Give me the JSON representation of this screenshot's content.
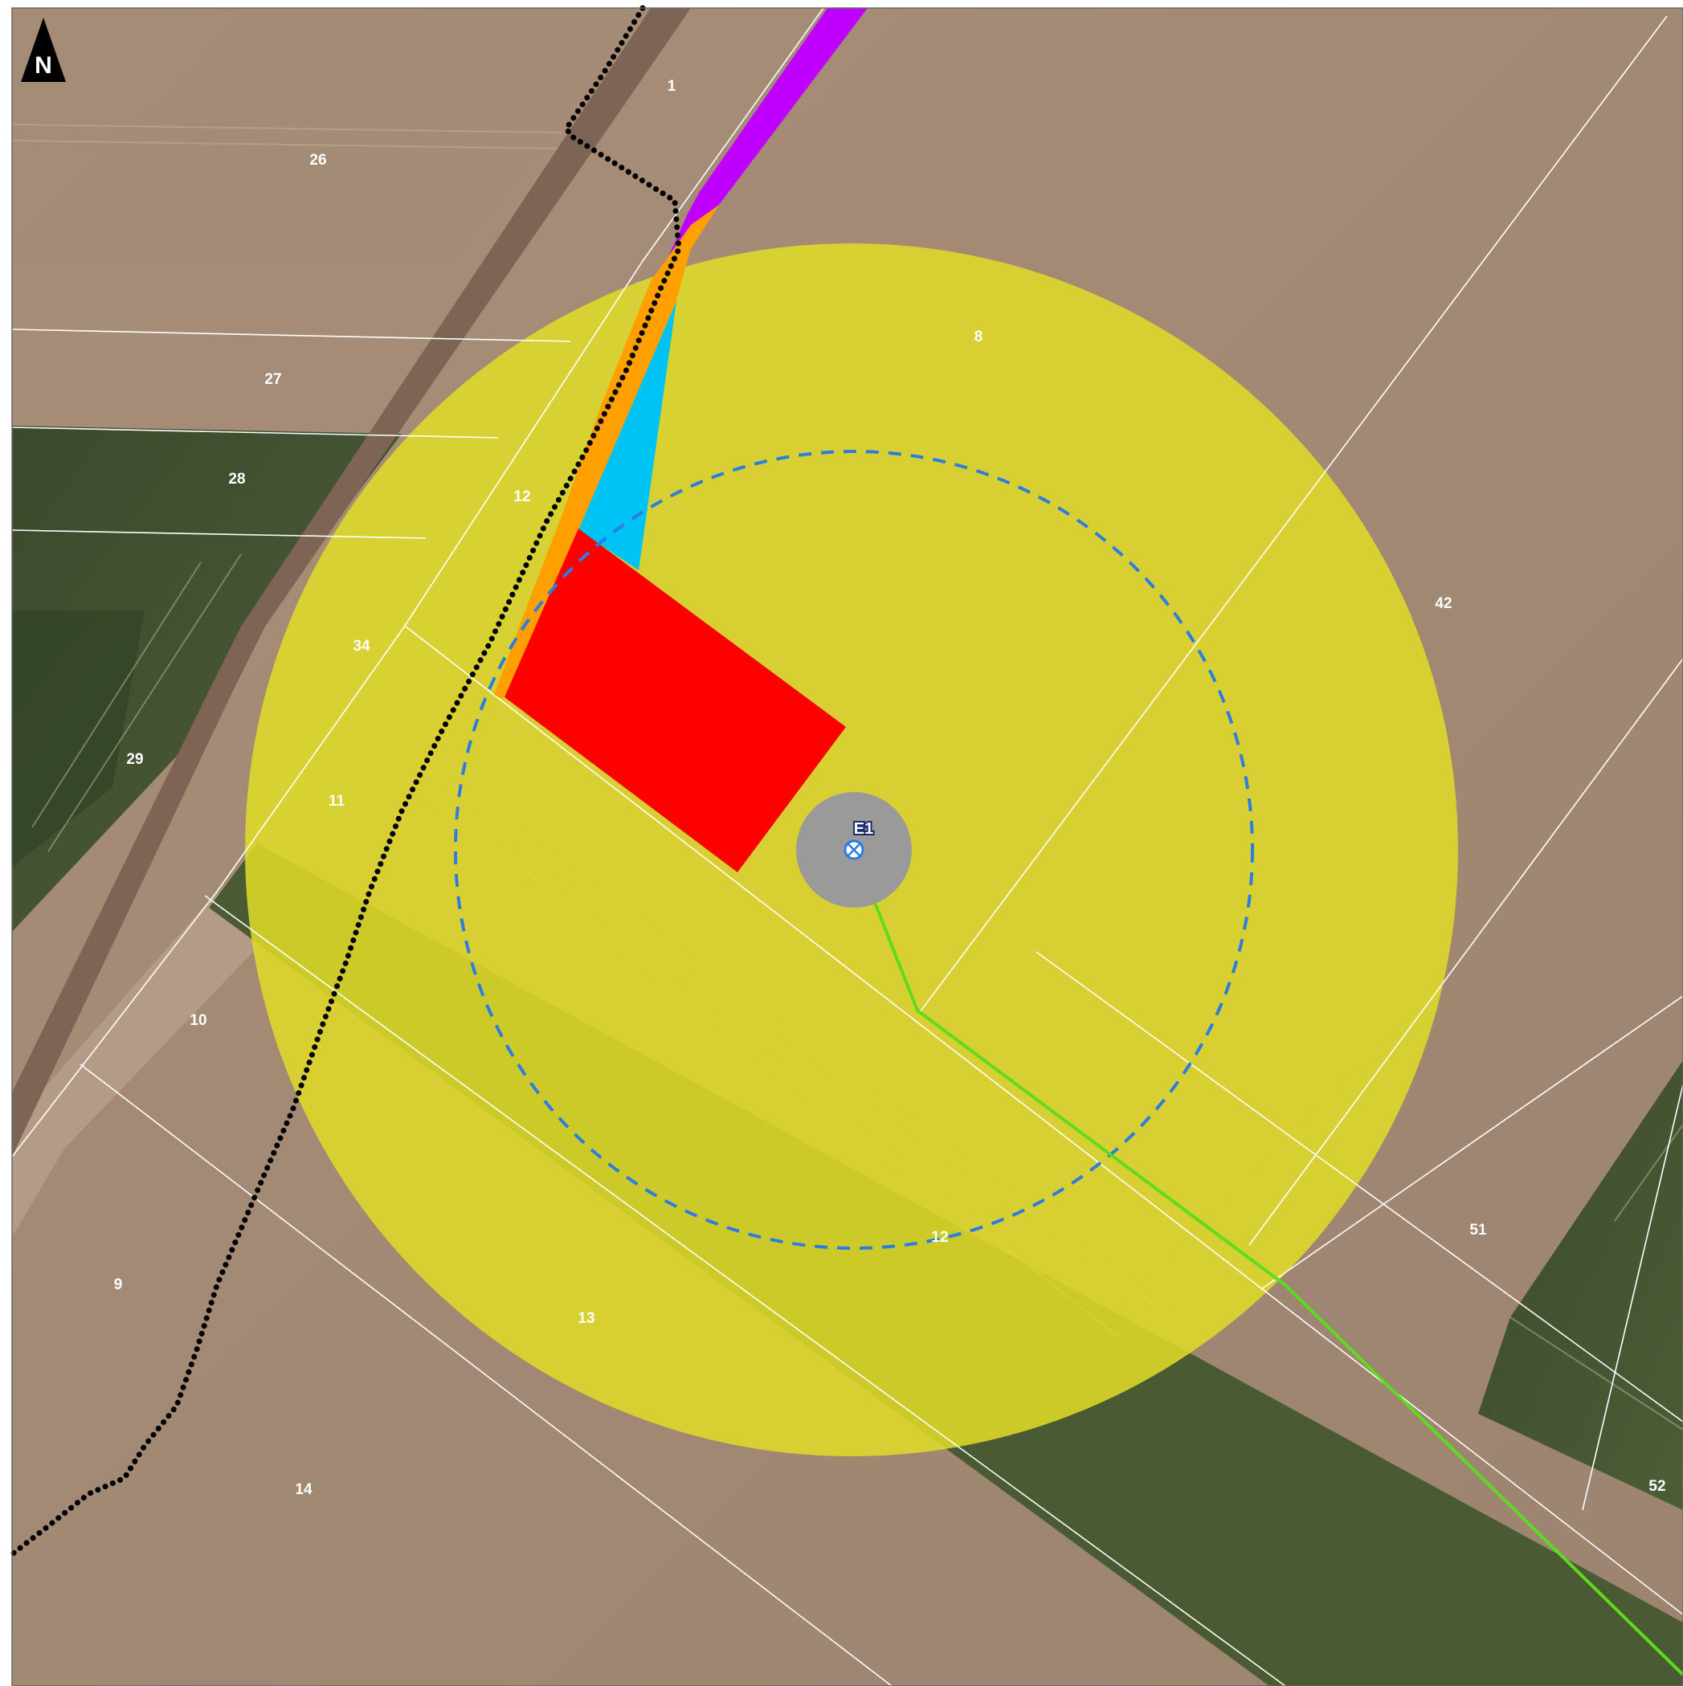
{
  "map": {
    "north_arrow": {
      "label": "N",
      "icon": "north-arrow-icon"
    },
    "turbine": {
      "label": "E1",
      "icon": "turbine-marker-icon"
    },
    "parcels": [
      "1",
      "26",
      "27",
      "28",
      "12",
      "34",
      "29",
      "11",
      "10",
      "9",
      "14",
      "13",
      "12",
      "8",
      "42",
      "51",
      "52"
    ],
    "colors": {
      "buffer_zone": "#e1dc28",
      "construction_area": "#ff0000",
      "access_road": "#ff9f00",
      "crane_area": "#00c3f5",
      "cable_route": "#5ddc1e",
      "pipeline": "#bf00ff",
      "radius_circle": "#2a7de1",
      "foundation": "#9a9a9a",
      "boundary_line": "#000000"
    }
  }
}
